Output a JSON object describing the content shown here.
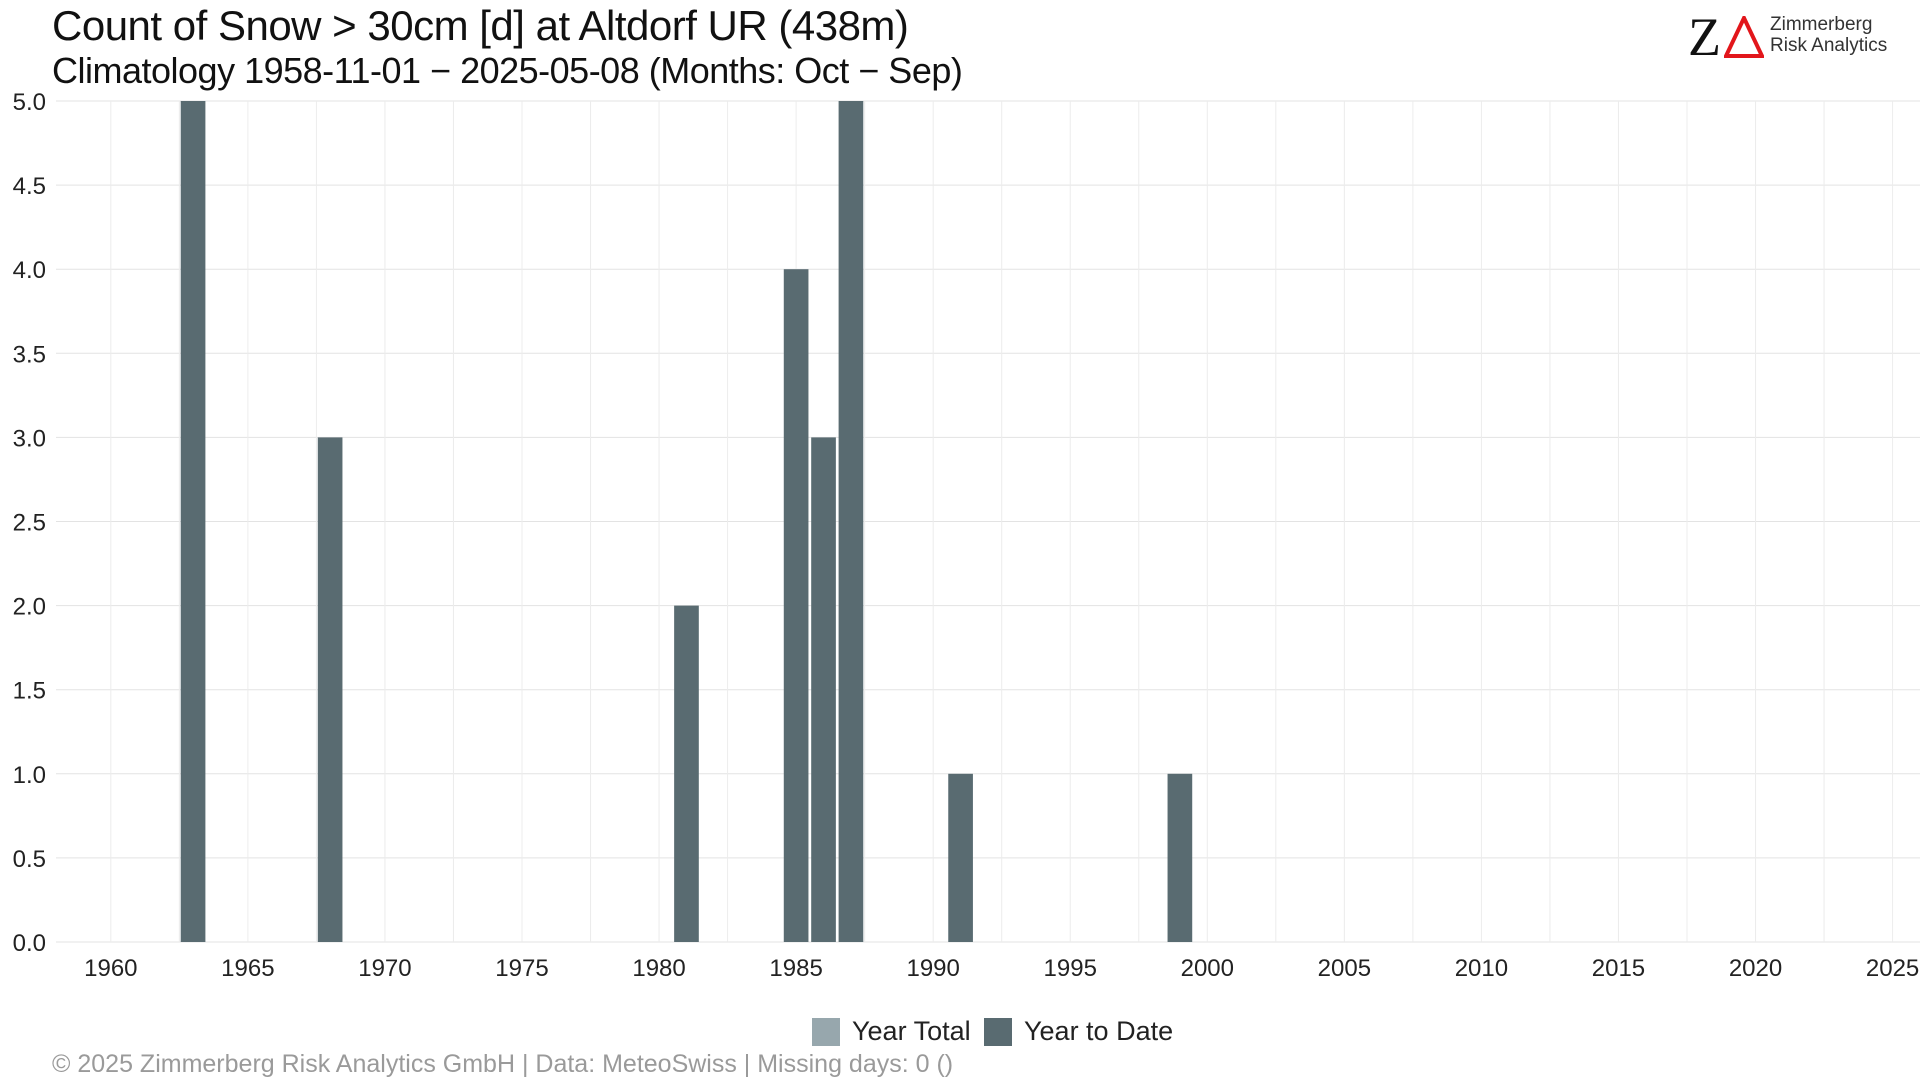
{
  "header": {
    "title": "Count of Snow > 30cm [d] at Altdorf  UR (438m)",
    "subtitle": "Climatology 1958-11-01 − 2025-05-08 (Months: Oct − Sep)"
  },
  "logo": {
    "line1": "Zimmerberg",
    "line2": "Risk Analytics",
    "letter": "Z",
    "z_color": "#111111",
    "delta_color": "#e2161b"
  },
  "chart_data": {
    "type": "bar",
    "title": "Count of Snow > 30cm [d] at Altdorf  UR (438m)",
    "subtitle": "Climatology 1958-11-01 − 2025-05-08 (Months: Oct − Sep)",
    "xlabel": "",
    "ylabel": "",
    "xlim": [
      1958,
      2026
    ],
    "ylim": [
      0,
      5
    ],
    "x_ticks": [
      1960,
      1965,
      1970,
      1975,
      1980,
      1985,
      1990,
      1995,
      2000,
      2005,
      2010,
      2015,
      2020,
      2025
    ],
    "y_ticks": [
      0.0,
      0.5,
      1.0,
      1.5,
      2.0,
      2.5,
      3.0,
      3.5,
      4.0,
      4.5,
      5.0
    ],
    "grid": true,
    "legend_position": "bottom",
    "series": [
      {
        "name": "Year Total",
        "color": "#97a7ad",
        "points": []
      },
      {
        "name": "Year to Date",
        "color": "#596b71",
        "points": [
          {
            "x": 1963,
            "y": 5
          },
          {
            "x": 1968,
            "y": 3
          },
          {
            "x": 1981,
            "y": 2
          },
          {
            "x": 1985,
            "y": 4
          },
          {
            "x": 1986,
            "y": 3
          },
          {
            "x": 1987,
            "y": 5
          },
          {
            "x": 1991,
            "y": 1
          },
          {
            "x": 1999,
            "y": 1
          }
        ]
      }
    ]
  },
  "legend": {
    "items": [
      {
        "label": "Year Total",
        "color": "#97a7ad"
      },
      {
        "label": "Year to Date",
        "color": "#596b71"
      }
    ]
  },
  "footer": {
    "caption": "©  2025 Zimmerberg Risk Analytics GmbH | Data: MeteoSwiss | Missing days: 0 ()"
  }
}
